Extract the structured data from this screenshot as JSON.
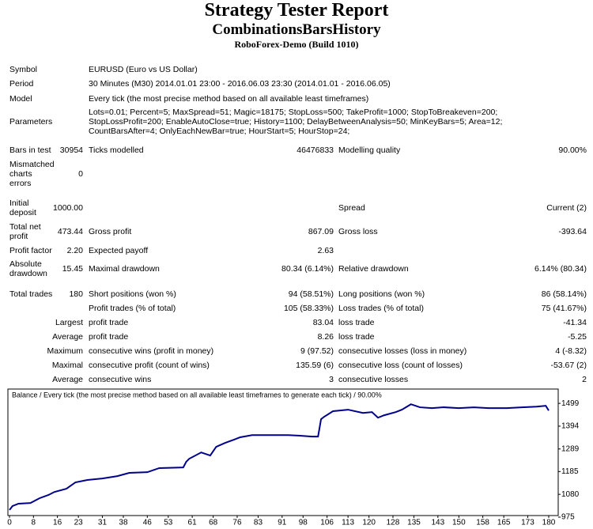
{
  "header": {
    "title": "Strategy Tester Report",
    "subtitle": "CombinationsBarsHistory",
    "server": "RoboForex-Demo (Build 1010)"
  },
  "rows": [
    {
      "label": "Symbol",
      "label2": "EURUSD (Euro vs US Dollar)"
    },
    {
      "label": "Period",
      "label2": "30 Minutes (M30) 2014.01.01 23:00 - 2016.06.03 23:30 (2014.01.01 - 2016.06.05)"
    },
    {
      "label": "Model",
      "label2": "Every tick (the most precise method based on all available least timeframes)"
    },
    {
      "label": "Parameters",
      "label2": "Lots=0.01; Percent=5; MaxSpread=51; Magic=18175; StopLoss=500; TakeProfit=1000; StopToBreakeven=200; StopLossProfit=200; EnableAutoClose=true; History=1100; DelayBetweenAnalysis=50; MinKeyBars=5; Area=12; CountBarsAfter=4; OnlyEachNewBar=true; HourStart=5; HourStop=24;"
    },
    {
      "label": "Bars in test",
      "value": "30954",
      "label2": "Ticks modelled",
      "value2": "46476833",
      "label3": "Modelling quality",
      "value3": "90.00%"
    },
    {
      "label": "Mismatched charts errors",
      "value": "0"
    },
    {
      "label": "Initial deposit",
      "value": "1000.00",
      "label3": "Spread",
      "value3": "Current (2)"
    },
    {
      "label": "Total net profit",
      "value": "473.44",
      "label2": "Gross profit",
      "value2": "867.09",
      "label3": "Gross loss",
      "value3": "-393.64"
    },
    {
      "label": "Profit factor",
      "value": "2.20",
      "label2": "Expected payoff",
      "value2": "2.63"
    },
    {
      "label": "Absolute drawdown",
      "value": "15.45",
      "label2": "Maximal drawdown",
      "value2": "80.34 (6.14%)",
      "label3": "Relative drawdown",
      "value3": "6.14% (80.34)"
    },
    {
      "label": "Total trades",
      "value": "180",
      "label2": "Short positions (won %)",
      "value2": "94 (58.51%)",
      "label3": "Long positions (won %)",
      "value3": "86 (58.14%)"
    },
    {
      "label2": "Profit trades (% of total)",
      "value2": "105 (58.33%)",
      "label3": "Loss trades (% of total)",
      "value3": "75 (41.67%)"
    },
    {
      "value": "Largest",
      "label2": "profit trade",
      "value2": "83.04",
      "label3": "loss trade",
      "value3": "-41.34"
    },
    {
      "value": "Average",
      "label2": "profit trade",
      "value2": "8.26",
      "label3": "loss trade",
      "value3": "-5.25"
    },
    {
      "value": "Maximum",
      "label2": "consecutive wins (profit in money)",
      "value2": "9 (97.52)",
      "label3": "consecutive losses (loss in money)",
      "value3": "4 (-8.32)"
    },
    {
      "value": "Maximal",
      "label2": "consecutive profit (count of wins)",
      "value2": "135.59 (6)",
      "label3": "consecutive loss (count of losses)",
      "value3": "-53.67 (2)"
    },
    {
      "value": "Average",
      "label2": "consecutive wins",
      "value2": "3",
      "label3": "consecutive losses",
      "value3": "2"
    }
  ],
  "chart_data": {
    "type": "line",
    "title": "Balance / Every tick (the most precise method based on all available least timeframes to generate each tick) / 90.00%",
    "color": "#00008b",
    "x": [
      0,
      1,
      3,
      7,
      10,
      13,
      15,
      19,
      22,
      26,
      31,
      36,
      40,
      46,
      50,
      58,
      59,
      60,
      64,
      67,
      69,
      72,
      75,
      77,
      81,
      87,
      93,
      97,
      101,
      103,
      104,
      105,
      108,
      113,
      118,
      121,
      123,
      125,
      129,
      131,
      134,
      137,
      141,
      145,
      150,
      155,
      160,
      166,
      171,
      176,
      179,
      180
    ],
    "values": [
      1008,
      1026,
      1037,
      1040,
      1062,
      1077,
      1091,
      1106,
      1135,
      1146,
      1153,
      1164,
      1179,
      1182,
      1201,
      1204,
      1230,
      1244,
      1273,
      1259,
      1299,
      1317,
      1332,
      1343,
      1353,
      1353,
      1353,
      1350,
      1346,
      1346,
      1426,
      1437,
      1463,
      1470,
      1455,
      1459,
      1433,
      1444,
      1459,
      1470,
      1495,
      1481,
      1477,
      1481,
      1477,
      1481,
      1477,
      1477,
      1481,
      1484,
      1488,
      1466
    ],
    "xlim": [
      0,
      180
    ],
    "ylim": [
      975,
      1565
    ],
    "xticks": [
      0,
      8,
      16,
      23,
      31,
      38,
      46,
      53,
      61,
      68,
      76,
      83,
      91,
      98,
      106,
      113,
      120,
      128,
      135,
      143,
      150,
      158,
      165,
      173,
      180
    ],
    "yticks": [
      975,
      1080,
      1185,
      1289,
      1394,
      1499
    ]
  }
}
